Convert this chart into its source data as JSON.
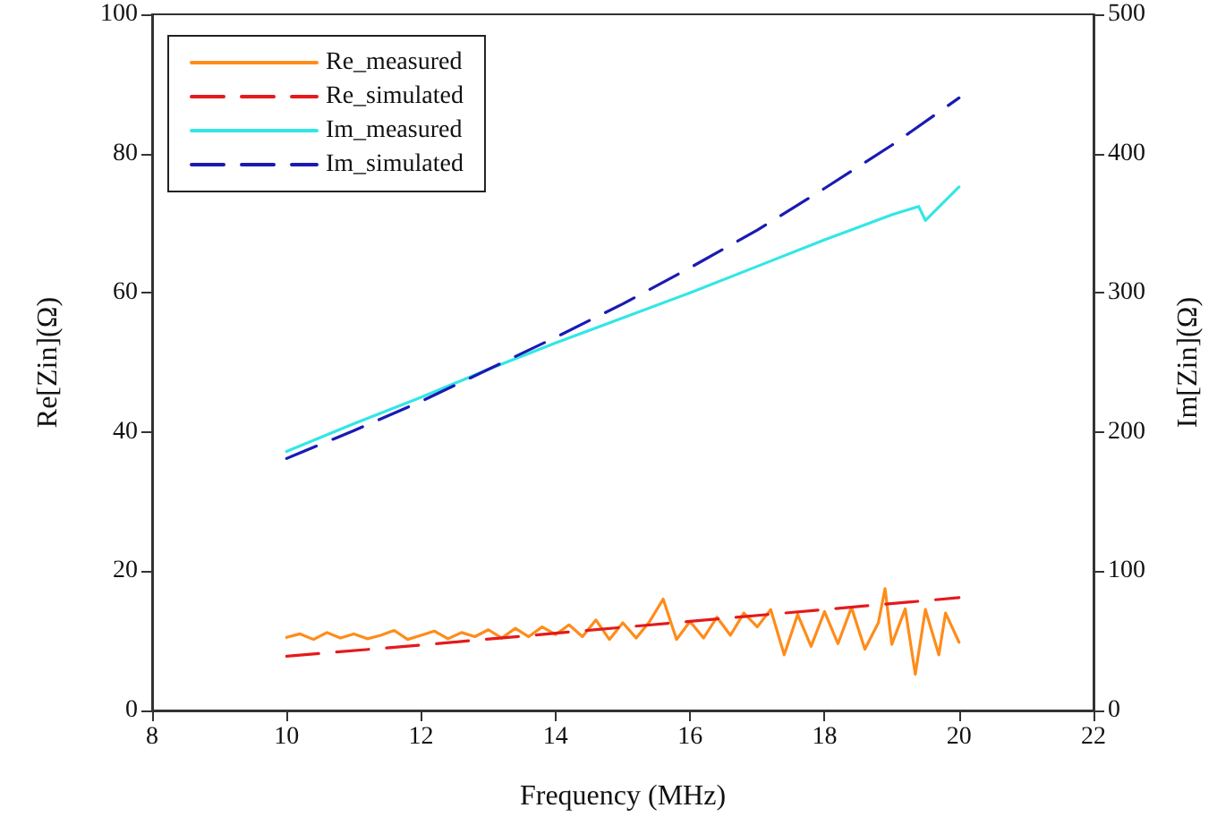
{
  "chart_data": {
    "type": "line",
    "xlabel": "Frequency (MHz)",
    "ylabel": "Re[Zin](Ω)",
    "y2label": "Im[Zin](Ω)",
    "xlim": [
      8,
      22
    ],
    "xticks": [
      8,
      10,
      12,
      14,
      16,
      18,
      20,
      22
    ],
    "ylim": [
      0,
      100
    ],
    "yticks": [
      0,
      20,
      40,
      60,
      80,
      100
    ],
    "y2lim": [
      0,
      500
    ],
    "y2ticks": [
      0,
      100,
      200,
      300,
      400,
      500
    ],
    "grid": false,
    "legend": "top left",
    "marker": "none",
    "series": [
      {
        "name": "Re_measured",
        "color": "#ff8c1a",
        "line_style": "solid",
        "x": [
          10,
          10.2,
          10.4,
          10.6,
          10.8,
          11,
          11.2,
          11.4,
          11.6,
          11.8,
          12,
          12.2,
          12.4,
          12.6,
          12.8,
          13,
          13.2,
          13.4,
          13.6,
          13.8,
          14,
          14.2,
          14.4,
          14.6,
          14.8,
          15,
          15.2,
          15.4,
          15.6,
          15.8,
          16,
          16.2,
          16.4,
          16.6,
          16.8,
          17,
          17.2,
          17.4,
          17.6,
          17.8,
          18,
          18.2,
          18.4,
          18.6,
          18.8,
          18.9,
          19,
          19.2,
          19.35,
          19.5,
          19.7,
          19.8,
          20
        ],
        "values": [
          10.5,
          11,
          10.2,
          11.2,
          10.4,
          11,
          10.3,
          10.8,
          11.5,
          10.2,
          10.8,
          11.4,
          10.3,
          11.2,
          10.6,
          11.6,
          10.4,
          11.8,
          10.6,
          12,
          10.9,
          12.3,
          10.6,
          13,
          10.2,
          12.6,
          10.4,
          12.8,
          16,
          10.2,
          12.8,
          10.4,
          13.4,
          10.8,
          14,
          12,
          14.5,
          8,
          13.8,
          9.2,
          14.2,
          9.6,
          14.8,
          8.8,
          12.6,
          17.5,
          9.5,
          14.6,
          5.2,
          14.5,
          8,
          14,
          9.8
        ]
      },
      {
        "name": "Re_simulated",
        "color": "#e41a1c",
        "line_style": "dashed",
        "x": [
          10,
          12,
          14,
          16,
          18,
          20
        ],
        "values": [
          7.8,
          9.4,
          11.1,
          12.8,
          14.5,
          16.2
        ]
      },
      {
        "name": "Im_measured",
        "color": "#33e6e6",
        "line_style": "solid",
        "axis": "y2",
        "x": [
          10,
          11,
          12,
          13,
          14,
          15,
          16,
          17,
          18,
          19,
          19.4,
          19.5,
          20
        ],
        "values": [
          186,
          206,
          225,
          245,
          264,
          282,
          300,
          319,
          338,
          356,
          362,
          352,
          376
        ]
      },
      {
        "name": "Im_simulated",
        "color": "#1a1ab3",
        "line_style": "dashed",
        "axis": "y2",
        "x": [
          10,
          11,
          12,
          13,
          14,
          15,
          16,
          17,
          18,
          19,
          20
        ],
        "values": [
          181,
          201,
          222,
          245,
          268,
          292,
          318,
          345,
          375,
          406,
          440
        ]
      }
    ]
  }
}
